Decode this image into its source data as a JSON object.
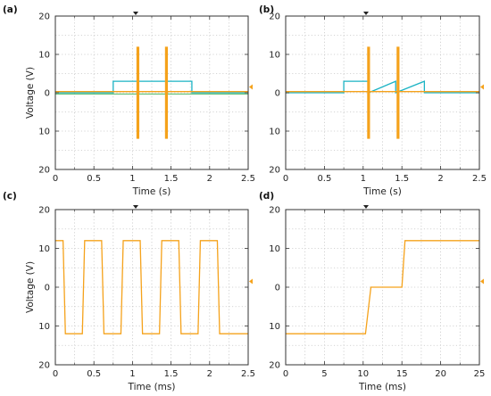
{
  "figure": {
    "panels": [
      {
        "id": "a",
        "label": "(a)",
        "xlabel": "Time (s)",
        "ylabel": "Voltage (V)"
      },
      {
        "id": "b",
        "label": "(b)",
        "xlabel": "Time (s)",
        "ylabel": ""
      },
      {
        "id": "c",
        "label": "(c)",
        "xlabel": "Time (ms)",
        "ylabel": "Voltage (V)"
      },
      {
        "id": "d",
        "label": "(d)",
        "xlabel": "Time (ms)",
        "ylabel": ""
      }
    ]
  },
  "colors": {
    "orange": "#F5A21B",
    "cyan": "#1BB3C4",
    "green": "#2EAA46"
  },
  "chart_data": [
    {
      "panel": "a",
      "type": "line",
      "xlabel": "Time (s)",
      "ylabel": "Voltage (V)",
      "xlim": [
        0,
        2.5
      ],
      "ylim": [
        -20,
        20
      ],
      "x_ticks": [
        "0",
        "0.5",
        "1",
        "1.5",
        "2",
        "2.5"
      ],
      "y_ticks": [
        "20",
        "10",
        "0",
        "10",
        "20"
      ],
      "grid": true,
      "series": [
        {
          "color": "cyan",
          "type": "line",
          "x": [
            0,
            0.75,
            0.75,
            1.77,
            1.77,
            2.5
          ],
          "y": [
            0,
            0,
            3,
            3,
            0,
            0
          ]
        },
        {
          "color": "orange",
          "type": "line",
          "x": [
            0,
            2.5
          ],
          "y": [
            0.3,
            0.3
          ]
        },
        {
          "color": "green",
          "type": "line",
          "x": [
            0,
            2.5
          ],
          "y": [
            -0.3,
            -0.3
          ]
        },
        {
          "color": "orange",
          "type": "spike",
          "x": [
            1.07,
            1.44
          ],
          "y_min": -12,
          "y_max": 12
        }
      ]
    },
    {
      "panel": "b",
      "type": "line",
      "xlabel": "Time (s)",
      "ylabel": "",
      "xlim": [
        0,
        2.5
      ],
      "ylim": [
        -20,
        20
      ],
      "x_ticks": [
        "0",
        "0.5",
        "1",
        "1.5",
        "2",
        "2.5"
      ],
      "y_ticks": [
        "20",
        "10",
        "0",
        "10",
        "20"
      ],
      "grid": true,
      "series": [
        {
          "color": "cyan",
          "type": "line",
          "x": [
            0,
            0.75,
            0.75,
            1.07,
            1.07,
            1.42,
            1.42,
            1.79,
            1.79,
            2.5
          ],
          "y": [
            0,
            0,
            3,
            3,
            0,
            3,
            0,
            3,
            0,
            0
          ]
        },
        {
          "color": "orange",
          "type": "line",
          "x": [
            0,
            2.5
          ],
          "y": [
            0.3,
            0.3
          ]
        },
        {
          "color": "orange",
          "type": "spike",
          "x": [
            1.07,
            1.45
          ],
          "y_min": -12,
          "y_max": 12
        }
      ]
    },
    {
      "panel": "c",
      "type": "line",
      "xlabel": "Time (ms)",
      "ylabel": "Voltage (V)",
      "xlim": [
        0,
        2.5
      ],
      "ylim": [
        -20,
        20
      ],
      "x_ticks": [
        "0",
        "0.5",
        "1",
        "1.5",
        "2",
        "2.5"
      ],
      "y_ticks": [
        "20",
        "10",
        "0",
        "10",
        "20"
      ],
      "grid": true,
      "series": [
        {
          "color": "orange",
          "type": "line",
          "x": [
            0,
            0.1,
            0.13,
            0.35,
            0.38,
            0.6,
            0.63,
            0.85,
            0.88,
            1.1,
            1.13,
            1.35,
            1.38,
            1.6,
            1.63,
            1.85,
            1.88,
            2.1,
            2.13,
            2.35,
            2.38,
            2.5
          ],
          "y": [
            12,
            12,
            -12,
            -12,
            12,
            12,
            -12,
            -12,
            12,
            12,
            -12,
            -12,
            12,
            12,
            -12,
            -12,
            12,
            12,
            -12,
            -12,
            -12,
            -12
          ]
        }
      ]
    },
    {
      "panel": "d",
      "type": "line",
      "xlabel": "Time (ms)",
      "ylabel": "",
      "xlim": [
        0,
        25
      ],
      "ylim": [
        -20,
        20
      ],
      "x_ticks": [
        "0",
        "5",
        "10",
        "15",
        "20",
        "25"
      ],
      "y_ticks": [
        "20",
        "10",
        "0",
        "10",
        "20"
      ],
      "grid": true,
      "series": [
        {
          "color": "orange",
          "type": "line",
          "x": [
            0,
            10.3,
            11,
            15,
            15.4,
            25
          ],
          "y": [
            -12,
            -12,
            0,
            0,
            12,
            12
          ]
        }
      ]
    }
  ]
}
